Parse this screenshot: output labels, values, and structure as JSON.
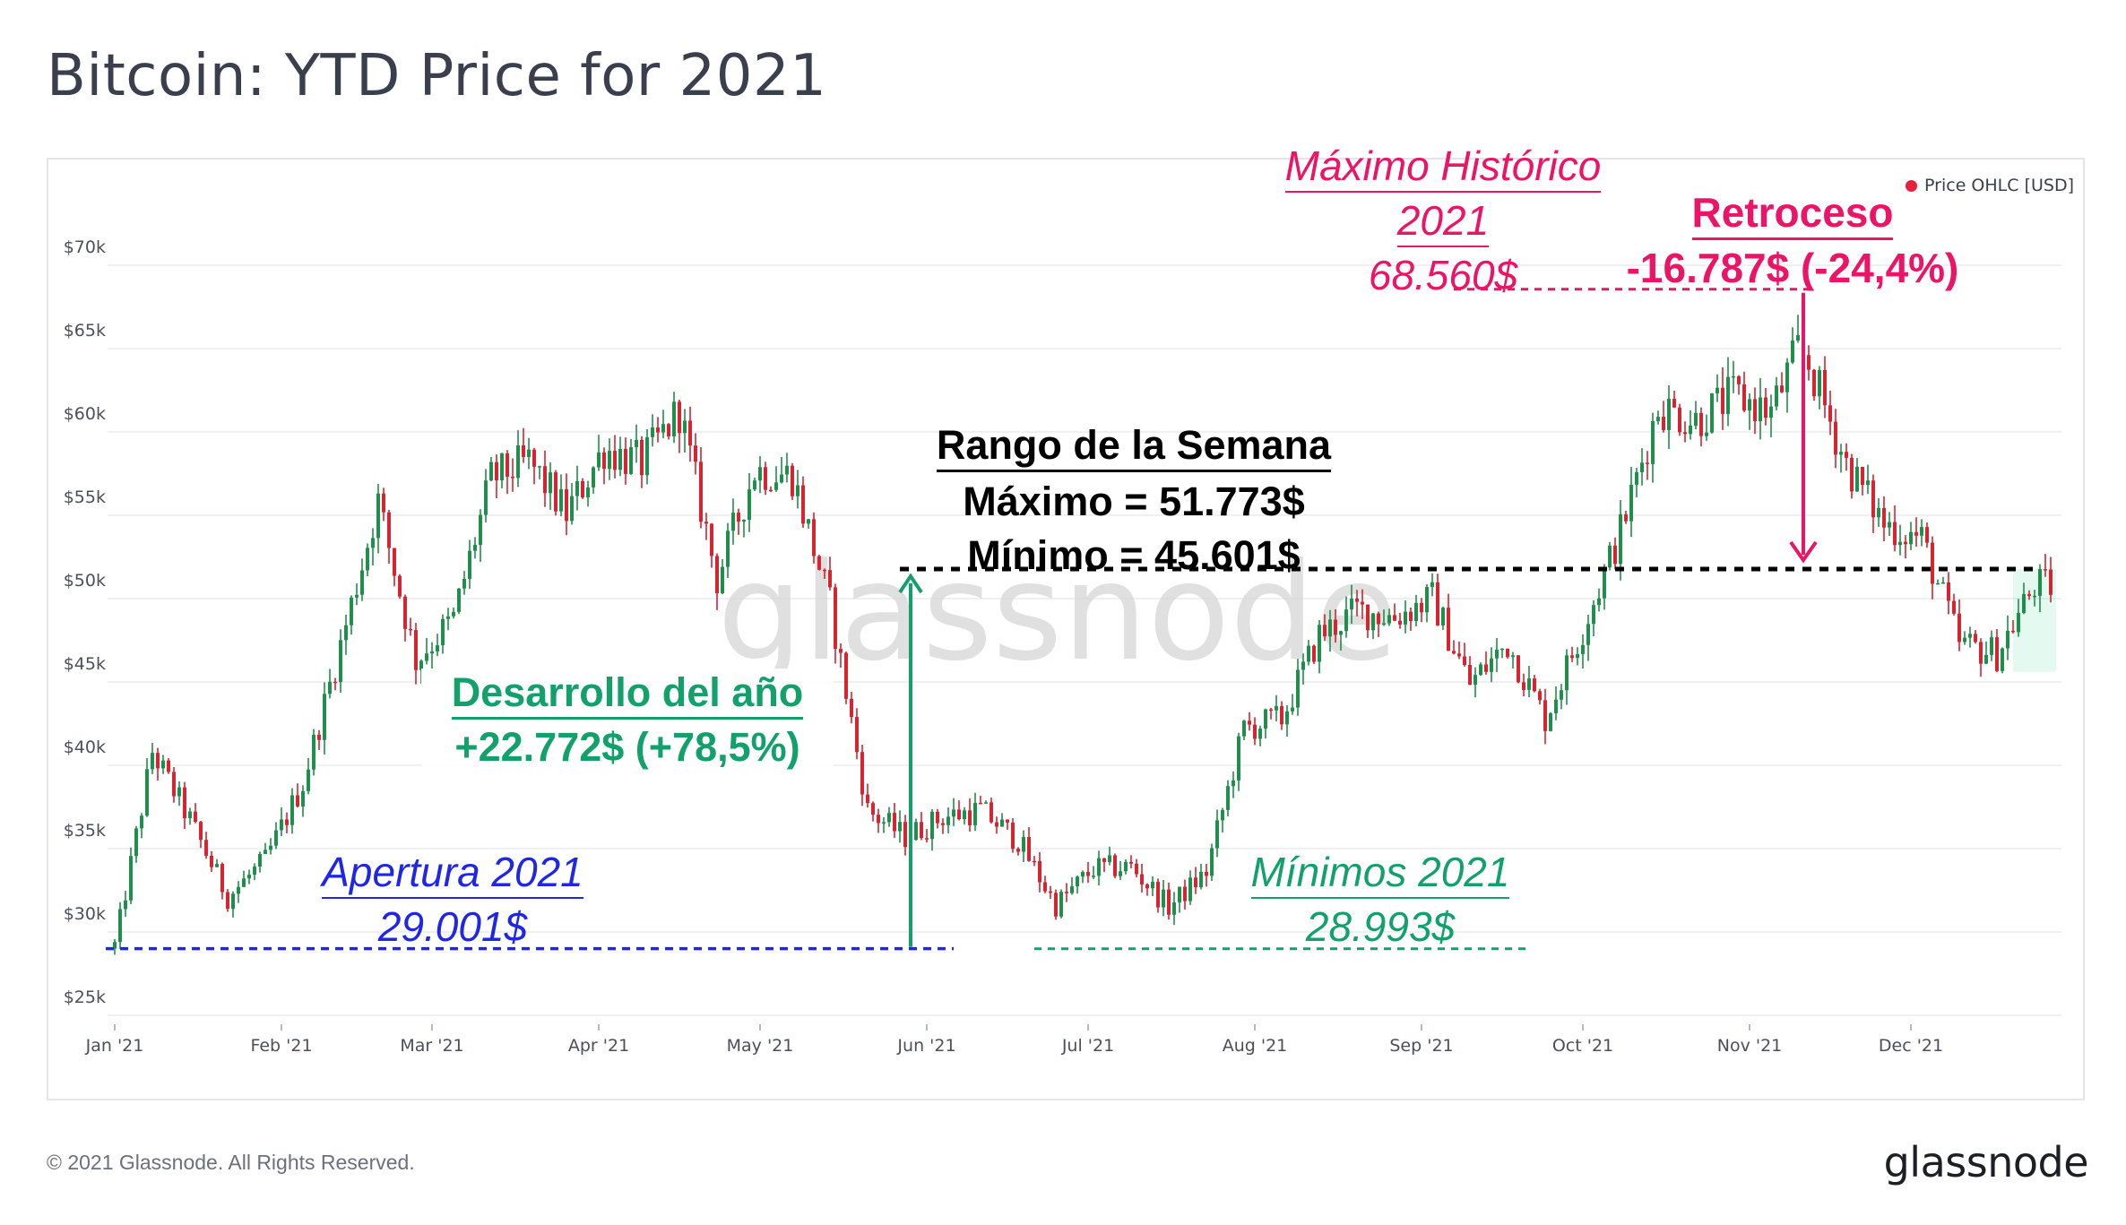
{
  "title": "Bitcoin: YTD Price for 2021",
  "legend_label": "Price OHLC [USD]",
  "footer": "© 2021 Glassnode. All Rights Reserved.",
  "brand": "glassnode",
  "watermark": "glassnode",
  "colors": {
    "up": "#1e8f4a",
    "down": "#d8232f",
    "blue": "#1f27e6",
    "green": "#12a16b",
    "pink": "#ec1466",
    "black": "#000000",
    "legend_dot": "#e5213b"
  },
  "annotations": {
    "ath_line1": "Máximo Histórico",
    "ath_line2": "2021",
    "ath_line3": "68.560$",
    "retroceso_title": "Retroceso",
    "retroceso_value": "-16.787$ (-24,4%)",
    "range_title": "Rango de la Semana",
    "range_max": "Máximo = 51.773$",
    "range_min": "Mínimo = 45.601$",
    "desarrollo_title": "Desarrollo del año",
    "desarrollo_value": "+22.772$ (+78,5%)",
    "apertura_title": "Apertura 2021",
    "apertura_value": "29.001$",
    "minimos_title": "Mínimos 2021",
    "minimos_value": "28.993$"
  },
  "chart_data": {
    "type": "candlestick",
    "title": "Bitcoin: YTD Price for 2021",
    "series_name": "Price OHLC [USD]",
    "y_ticks": [
      "$25k",
      "$30k",
      "$35k",
      "$40k",
      "$45k",
      "$50k",
      "$55k",
      "$60k",
      "$65k",
      "$70k"
    ],
    "y_tick_values": [
      25000,
      30000,
      35000,
      40000,
      45000,
      50000,
      55000,
      60000,
      65000,
      70000
    ],
    "ylim": [
      25000,
      72000
    ],
    "x_ticks": [
      "Jan '21",
      "Feb '21",
      "Mar '21",
      "Apr '21",
      "May '21",
      "Jun '21",
      "Jul '21",
      "Aug '21",
      "Sep '21",
      "Oct '21",
      "Nov '21",
      "Dec '21"
    ],
    "x_range": [
      "2021-01-01",
      "2021-12-27"
    ],
    "grid": true,
    "legend_position": "top-right",
    "reference_levels": {
      "open_2021": 29001,
      "low_2021": 28993,
      "ath_2021": 68560,
      "week_high": 51773,
      "week_low": 45601
    },
    "weekly_close_trace": [
      [
        "2021-01-01",
        29001
      ],
      [
        "2021-01-08",
        40800
      ],
      [
        "2021-01-15",
        36700
      ],
      [
        "2021-01-22",
        32100
      ],
      [
        "2021-01-29",
        34300
      ],
      [
        "2021-02-05",
        38900
      ],
      [
        "2021-02-12",
        47200
      ],
      [
        "2021-02-19",
        55800
      ],
      [
        "2021-02-26",
        46300
      ],
      [
        "2021-03-05",
        48800
      ],
      [
        "2021-03-12",
        57200
      ],
      [
        "2021-03-19",
        58200
      ],
      [
        "2021-03-26",
        55100
      ],
      [
        "2021-04-02",
        59000
      ],
      [
        "2021-04-09",
        58100
      ],
      [
        "2021-04-16",
        61300
      ],
      [
        "2021-04-23",
        51200
      ],
      [
        "2021-04-30",
        57700
      ],
      [
        "2021-05-07",
        57400
      ],
      [
        "2021-05-14",
        49700
      ],
      [
        "2021-05-21",
        37300
      ],
      [
        "2021-05-28",
        35700
      ],
      [
        "2021-06-04",
        36900
      ],
      [
        "2021-06-11",
        37300
      ],
      [
        "2021-06-18",
        35500
      ],
      [
        "2021-06-25",
        31600
      ],
      [
        "2021-07-02",
        33800
      ],
      [
        "2021-07-09",
        33900
      ],
      [
        "2021-07-16",
        31500
      ],
      [
        "2021-07-23",
        33600
      ],
      [
        "2021-07-30",
        42200
      ],
      [
        "2021-08-06",
        42800
      ],
      [
        "2021-08-13",
        47800
      ],
      [
        "2021-08-20",
        49300
      ],
      [
        "2021-08-27",
        48900
      ],
      [
        "2021-09-03",
        50000
      ],
      [
        "2021-09-10",
        44900
      ],
      [
        "2021-09-17",
        47300
      ],
      [
        "2021-09-24",
        42800
      ],
      [
        "2021-10-01",
        48200
      ],
      [
        "2021-10-08",
        54000
      ],
      [
        "2021-10-15",
        61500
      ],
      [
        "2021-10-22",
        60700
      ],
      [
        "2021-10-29",
        62200
      ],
      [
        "2021-11-05",
        61200
      ],
      [
        "2021-11-10",
        64900
      ],
      [
        "2021-11-12",
        64100
      ],
      [
        "2021-11-19",
        58100
      ],
      [
        "2021-11-26",
        54500
      ],
      [
        "2021-12-03",
        53600
      ],
      [
        "2021-12-10",
        47300
      ],
      [
        "2021-12-17",
        46700
      ],
      [
        "2021-12-24",
        50800
      ],
      [
        "2021-12-27",
        50700
      ]
    ]
  }
}
